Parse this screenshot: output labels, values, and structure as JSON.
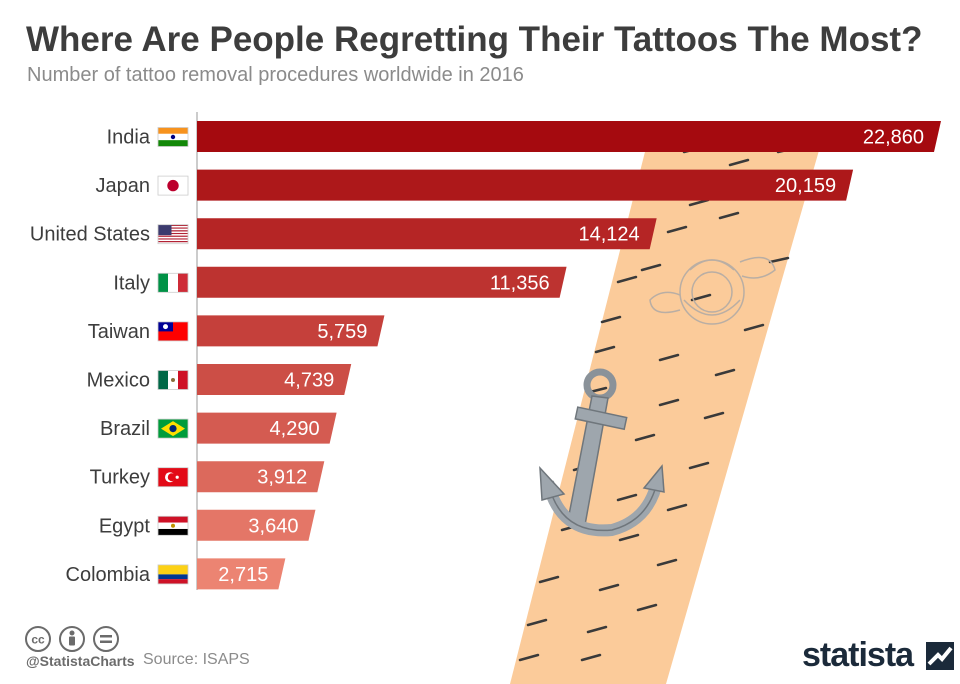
{
  "title": "Where Are People Regretting Their Tattoos The Most?",
  "subtitle": "Number of tattoo removal procedures worldwide in 2016",
  "footer": {
    "handle": "@StatistaCharts",
    "source": "Source: ISAPS",
    "brand": "statista"
  },
  "colors": {
    "bar_top": "#a50a0f",
    "bar_bottom": "#ec8472",
    "tattoo_strip": "#fbcb9a",
    "anchor": "#9ea6ad"
  },
  "chart_data": {
    "type": "bar",
    "orientation": "horizontal",
    "title": "Where Are People Regretting Their Tattoos The Most?",
    "subtitle": "Number of tattoo removal procedures worldwide in 2016",
    "categories": [
      "India",
      "Japan",
      "United States",
      "Italy",
      "Taiwan",
      "Mexico",
      "Brazil",
      "Turkey",
      "Egypt",
      "Colombia"
    ],
    "values": [
      22860,
      20159,
      14124,
      11356,
      5759,
      4739,
      4290,
      3912,
      3640,
      2715
    ],
    "value_labels": [
      "22,860",
      "20,159",
      "14,124",
      "11,356",
      "5,759",
      "4,739",
      "4,290",
      "3,912",
      "3,640",
      "2,715"
    ],
    "flags": [
      "india",
      "japan",
      "united-states",
      "italy",
      "taiwan",
      "mexico",
      "brazil",
      "turkey",
      "egypt",
      "colombia"
    ],
    "xlim": [
      0,
      22860
    ],
    "grid": false,
    "legend": "none"
  }
}
